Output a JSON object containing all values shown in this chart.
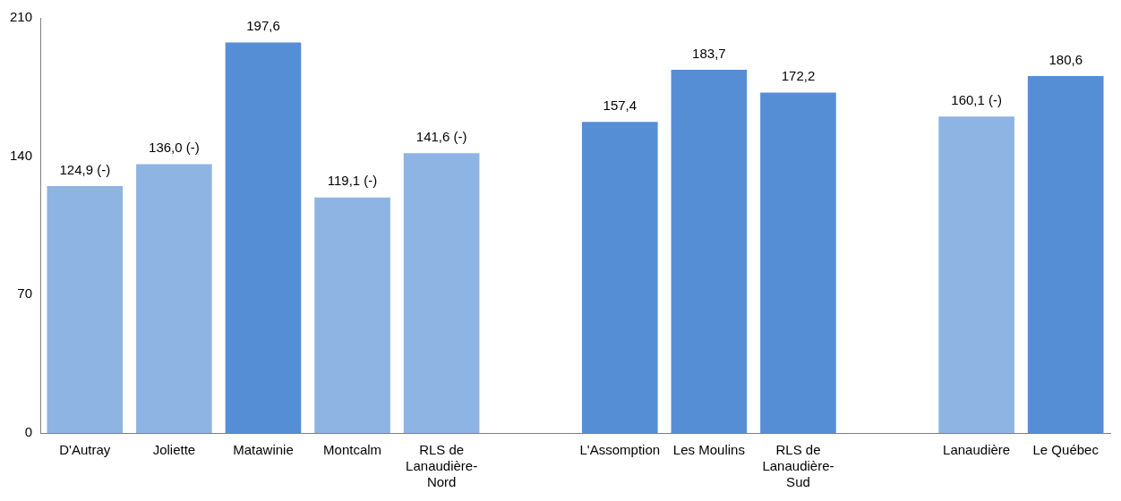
{
  "chart_data": {
    "type": "bar",
    "categories": [
      "D'Autray",
      "Joliette",
      "Matawinie",
      "Montcalm",
      "RLS de Lanaudière-Nord",
      null,
      "L'Assomption",
      "Les Moulins",
      "RLS de Lanaudière-Sud",
      null,
      "Lanaudière",
      "Le Québec"
    ],
    "values": [
      124.9,
      136.0,
      197.6,
      119.1,
      141.6,
      null,
      157.4,
      183.7,
      172.2,
      null,
      160.1,
      180.6
    ],
    "value_labels": [
      "124,9 (-)",
      "136,0 (-)",
      "197,6",
      "119,1 (-)",
      "141,6 (-)",
      null,
      "157,4",
      "183,7",
      "172,2",
      null,
      "160,1 (-)",
      "180,6"
    ],
    "colors": [
      "#8eb4e3",
      "#8eb4e3",
      "#558ed5",
      "#8eb4e3",
      "#8eb4e3",
      null,
      "#558ed5",
      "#558ed5",
      "#558ed5",
      null,
      "#8eb4e3",
      "#558ed5"
    ],
    "ylim": [
      0,
      210
    ],
    "yticks": [
      0,
      70,
      140,
      210
    ],
    "grid": false,
    "legend": false
  }
}
